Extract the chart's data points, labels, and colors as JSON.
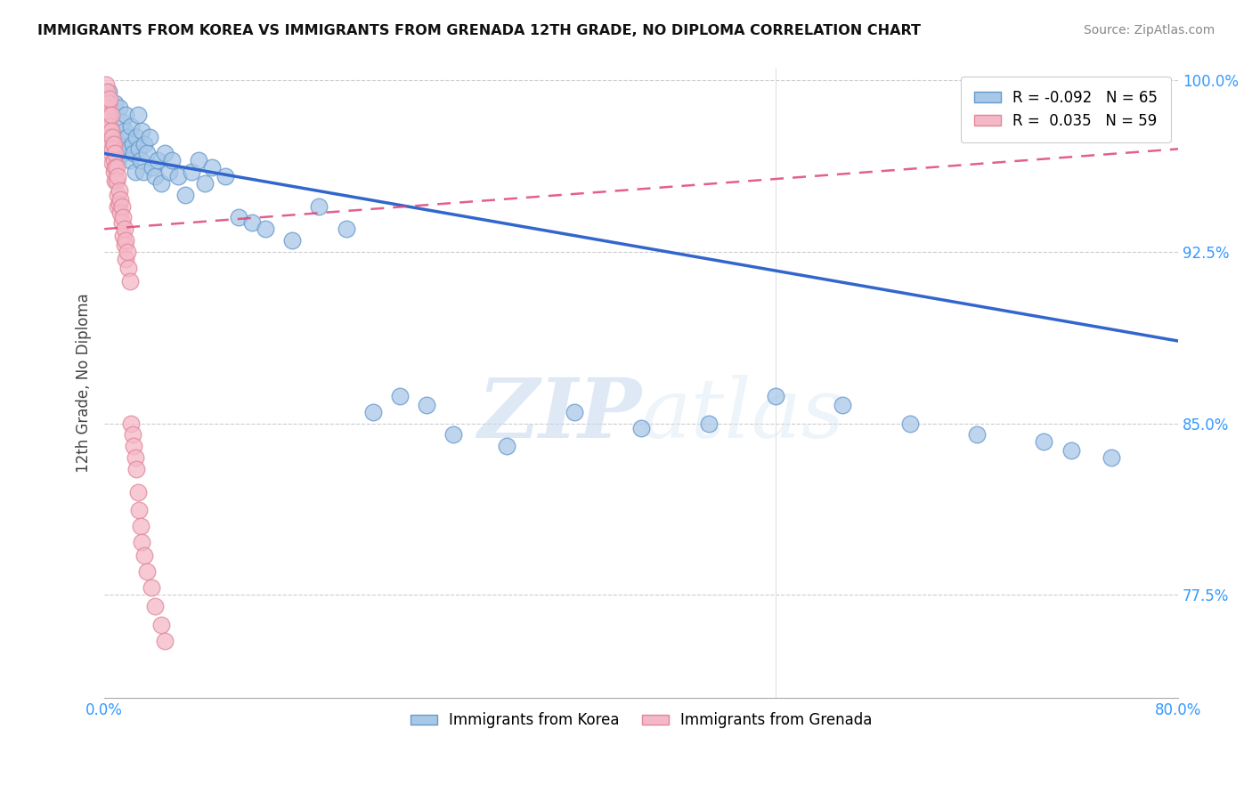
{
  "title": "IMMIGRANTS FROM KOREA VS IMMIGRANTS FROM GRENADA 12TH GRADE, NO DIPLOMA CORRELATION CHART",
  "source": "Source: ZipAtlas.com",
  "ylabel": "12th Grade, No Diploma",
  "x_min": 0.0,
  "x_max": 0.8,
  "y_min": 0.73,
  "y_max": 1.005,
  "x_ticks": [
    0.0,
    0.2,
    0.4,
    0.6,
    0.8
  ],
  "x_tick_labels": [
    "0.0%",
    "",
    "",
    "",
    "80.0%"
  ],
  "y_ticks": [
    0.775,
    0.85,
    0.925,
    1.0
  ],
  "y_tick_labels": [
    "77.5%",
    "85.0%",
    "92.5%",
    "100.0%"
  ],
  "korea_color": "#a8c8e8",
  "grenada_color": "#f5b8c8",
  "korea_edge": "#6699cc",
  "grenada_edge": "#e08898",
  "trendline_korea_color": "#3366cc",
  "trendline_grenada_color": "#dd4477",
  "legend_korea_label": "R = -0.092   N = 65",
  "legend_grenada_label": "R =  0.035   N = 59",
  "bottom_legend_korea": "Immigrants from Korea",
  "bottom_legend_grenada": "Immigrants from Grenada",
  "watermark_zip": "ZIP",
  "watermark_atlas": "atlas",
  "korea_R": -0.092,
  "grenada_R": 0.035,
  "korea_N": 65,
  "grenada_N": 59,
  "korea_x": [
    0.002,
    0.003,
    0.005,
    0.006,
    0.007,
    0.008,
    0.009,
    0.01,
    0.011,
    0.012,
    0.013,
    0.014,
    0.015,
    0.016,
    0.017,
    0.018,
    0.019,
    0.02,
    0.021,
    0.022,
    0.023,
    0.024,
    0.025,
    0.026,
    0.027,
    0.028,
    0.029,
    0.03,
    0.032,
    0.034,
    0.036,
    0.038,
    0.04,
    0.042,
    0.045,
    0.048,
    0.05,
    0.055,
    0.06,
    0.065,
    0.07,
    0.075,
    0.08,
    0.09,
    0.1,
    0.11,
    0.12,
    0.14,
    0.16,
    0.18,
    0.2,
    0.22,
    0.24,
    0.26,
    0.3,
    0.35,
    0.4,
    0.45,
    0.5,
    0.55,
    0.6,
    0.65,
    0.7,
    0.72,
    0.75
  ],
  "korea_y": [
    0.98,
    0.995,
    0.978,
    0.985,
    0.975,
    0.99,
    0.97,
    0.965,
    0.988,
    0.972,
    0.982,
    0.968,
    0.978,
    0.985,
    0.975,
    0.97,
    0.965,
    0.98,
    0.972,
    0.968,
    0.96,
    0.975,
    0.985,
    0.97,
    0.965,
    0.978,
    0.96,
    0.972,
    0.968,
    0.975,
    0.962,
    0.958,
    0.965,
    0.955,
    0.968,
    0.96,
    0.965,
    0.958,
    0.95,
    0.96,
    0.965,
    0.955,
    0.962,
    0.958,
    0.94,
    0.938,
    0.935,
    0.93,
    0.945,
    0.935,
    0.855,
    0.862,
    0.858,
    0.845,
    0.84,
    0.855,
    0.848,
    0.85,
    0.862,
    0.858,
    0.85,
    0.845,
    0.842,
    0.838,
    0.835
  ],
  "grenada_x": [
    0.001,
    0.001,
    0.002,
    0.002,
    0.002,
    0.003,
    0.003,
    0.003,
    0.004,
    0.004,
    0.004,
    0.005,
    0.005,
    0.005,
    0.005,
    0.006,
    0.006,
    0.006,
    0.007,
    0.007,
    0.007,
    0.008,
    0.008,
    0.008,
    0.009,
    0.009,
    0.01,
    0.01,
    0.01,
    0.011,
    0.011,
    0.012,
    0.012,
    0.013,
    0.013,
    0.014,
    0.014,
    0.015,
    0.015,
    0.016,
    0.016,
    0.017,
    0.018,
    0.019,
    0.02,
    0.021,
    0.022,
    0.023,
    0.024,
    0.025,
    0.026,
    0.027,
    0.028,
    0.03,
    0.032,
    0.035,
    0.038,
    0.042,
    0.045
  ],
  "grenada_y": [
    0.998,
    0.992,
    0.995,
    0.988,
    0.982,
    0.99,
    0.985,
    0.978,
    0.992,
    0.98,
    0.975,
    0.985,
    0.978,
    0.972,
    0.968,
    0.975,
    0.97,
    0.964,
    0.972,
    0.965,
    0.96,
    0.968,
    0.962,
    0.956,
    0.962,
    0.956,
    0.958,
    0.95,
    0.945,
    0.952,
    0.946,
    0.948,
    0.942,
    0.945,
    0.938,
    0.94,
    0.932,
    0.935,
    0.928,
    0.93,
    0.922,
    0.925,
    0.918,
    0.912,
    0.85,
    0.845,
    0.84,
    0.835,
    0.83,
    0.82,
    0.812,
    0.805,
    0.798,
    0.792,
    0.785,
    0.778,
    0.77,
    0.762,
    0.755
  ],
  "korea_trend_x": [
    0.0,
    0.8
  ],
  "korea_trend_y": [
    0.968,
    0.886
  ],
  "grenada_trend_x": [
    0.0,
    0.05
  ],
  "grenada_trend_y": [
    0.94,
    0.958
  ]
}
